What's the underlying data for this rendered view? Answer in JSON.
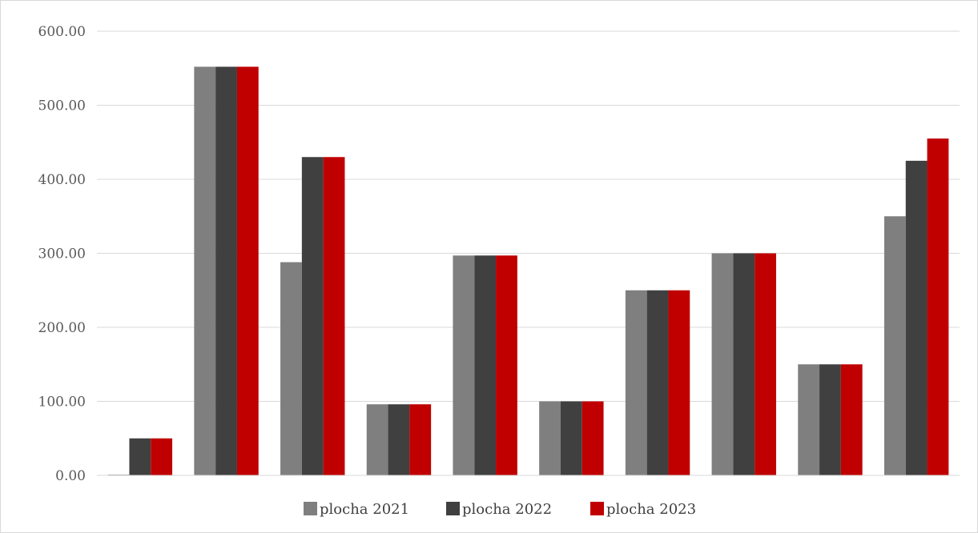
{
  "chart_data": {
    "type": "bar",
    "title": "",
    "xlabel": "",
    "ylabel": "",
    "ylim": [
      0,
      600
    ],
    "yticks": [
      "0.00",
      "100.00",
      "200.00",
      "300.00",
      "400.00",
      "500.00",
      "600.00"
    ],
    "grid": true,
    "legend_position": "bottom",
    "categories": [
      "",
      "",
      "",
      "",
      "",
      "",
      "",
      "",
      "",
      ""
    ],
    "series": [
      {
        "name": "plocha 2021",
        "color": "#7f7f7f",
        "values": [
          1,
          552,
          288,
          96,
          297,
          100,
          250,
          300,
          150,
          350
        ]
      },
      {
        "name": "plocha 2022",
        "color": "#404040",
        "values": [
          50,
          552,
          430,
          96,
          297,
          100,
          250,
          300,
          150,
          425
        ]
      },
      {
        "name": "plocha 2023",
        "color": "#c00000",
        "values": [
          50,
          552,
          430,
          96,
          297,
          100,
          250,
          300,
          150,
          455
        ]
      }
    ]
  }
}
